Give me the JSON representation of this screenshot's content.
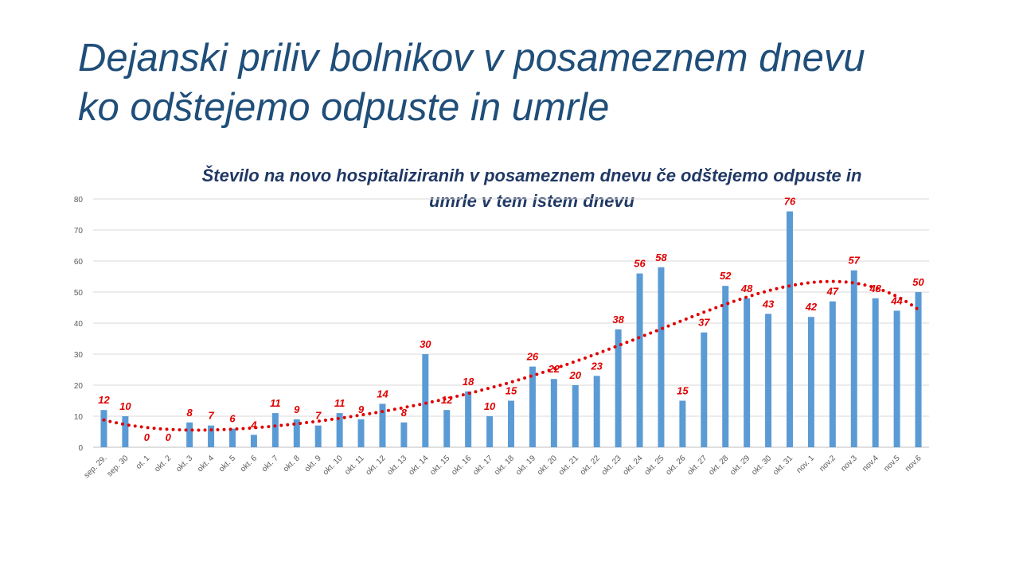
{
  "slide": {
    "title_lines": [
      "Dejanski priliv bolnikov v posameznem dnevu",
      "ko odštejemo odpuste in umrle"
    ]
  },
  "chart_data": {
    "type": "bar",
    "title_lines": [
      "Število na novo hospitaliziranih v posameznem dnevu če odštejemo odpuste in",
      "umrle v tem istem dnevu"
    ],
    "categories": [
      "sep. 29.",
      "sep. 30",
      "ot. 1",
      "okt. 2",
      "okt. 3",
      "okt. 4",
      "okt. 5",
      "okt. 6",
      "okt. 7",
      "okt. 8",
      "okt. 9",
      "okt. 10",
      "okt. 11",
      "okt. 12",
      "okt. 13",
      "okt. 14",
      "okt. 15",
      "okt. 16",
      "okt. 17",
      "okt. 18",
      "okt. 19",
      "okt. 20",
      "okt. 21",
      "okt. 22",
      "okt. 23",
      "okt. 24",
      "okt. 25",
      "okt. 26",
      "okt. 27",
      "okt. 28",
      "okt. 29",
      "okt. 30",
      "okt. 31",
      "nov. 1",
      "nov.2",
      "nov.3",
      "nov.4",
      "nov.5",
      "nov.6"
    ],
    "values": [
      12,
      10,
      0,
      0,
      8,
      7,
      6,
      4,
      11,
      9,
      7,
      11,
      9,
      14,
      8,
      30,
      12,
      18,
      10,
      15,
      26,
      22,
      20,
      23,
      38,
      56,
      58,
      15,
      37,
      52,
      48,
      43,
      76,
      42,
      47,
      57,
      48,
      44,
      50
    ],
    "ylim": [
      0,
      80
    ],
    "yticks": [
      0,
      10,
      20,
      30,
      40,
      50,
      60,
      70,
      80
    ],
    "grid": true,
    "trendline": "polynomial",
    "xlabel": "",
    "ylabel": "",
    "colors": {
      "bar": "#5b9bd5",
      "label": "#e00000",
      "trend": "#e00000",
      "grid": "#d9d9d9",
      "axis_text": "#595959"
    }
  }
}
